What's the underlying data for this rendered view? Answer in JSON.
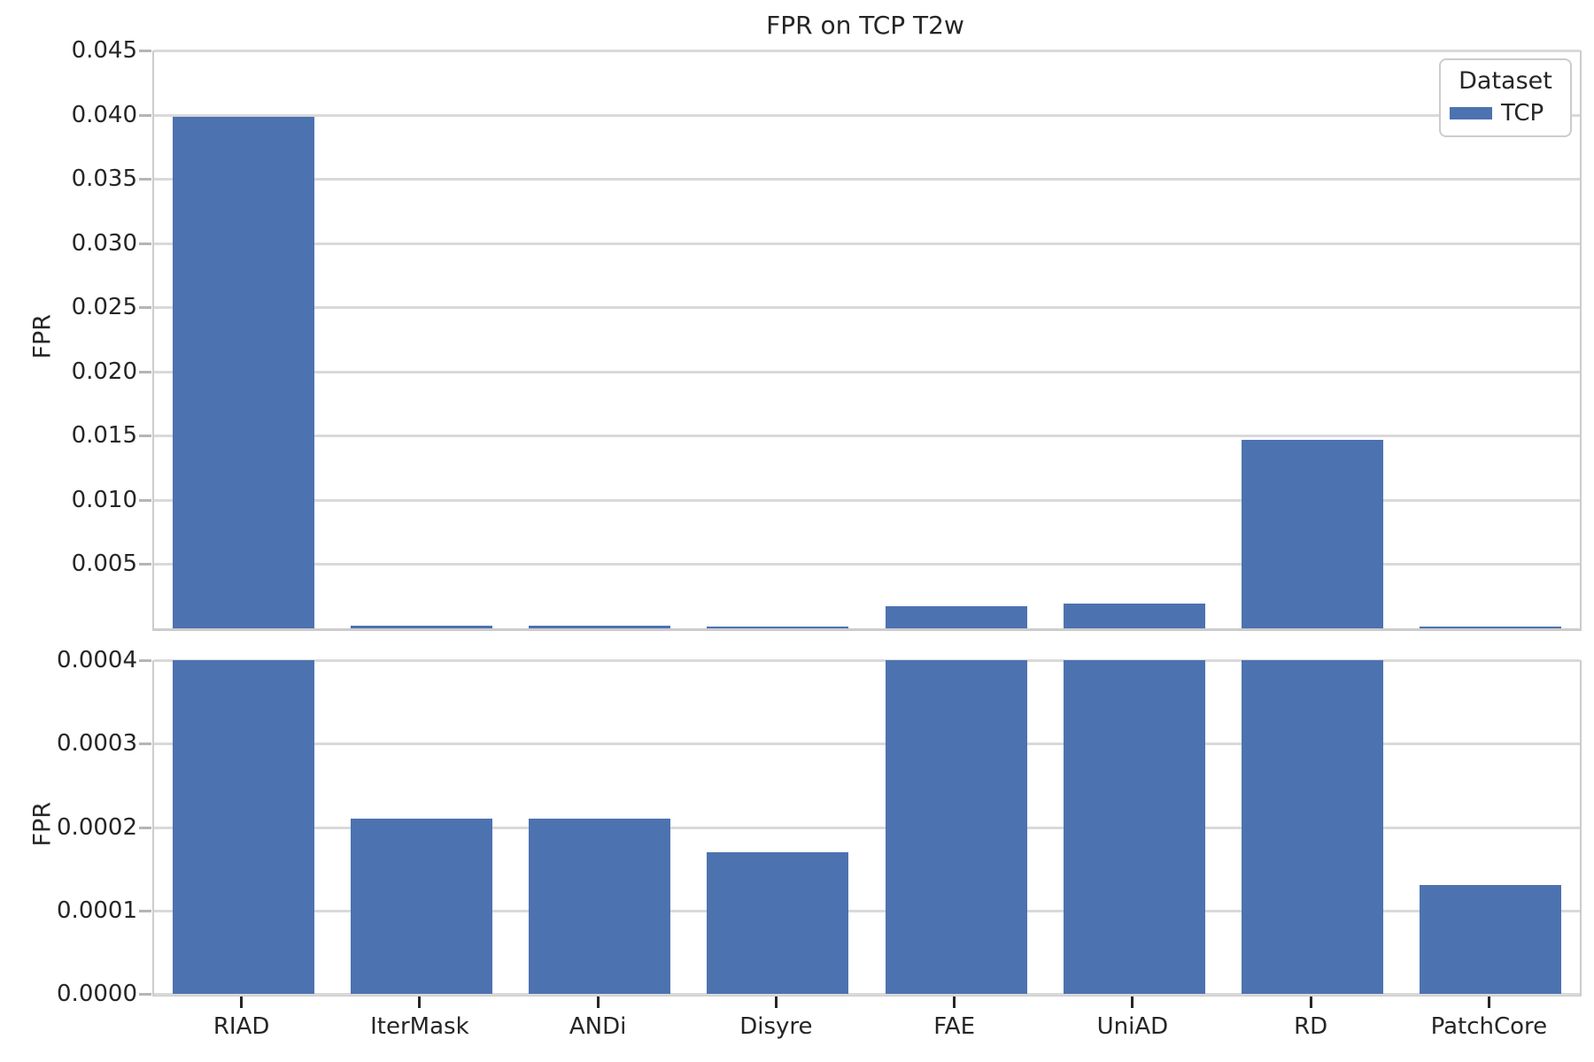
{
  "chart_data": {
    "type": "bar",
    "title": "FPR on TCP T2w",
    "categories": [
      "RIAD",
      "IterMask",
      "ANDi",
      "Disyre",
      "FAE",
      "UniAD",
      "RD",
      "PatchCore"
    ],
    "series": [
      {
        "name": "TCP",
        "values": [
          0.0398,
          0.00021,
          0.00021,
          0.00017,
          0.0017,
          0.0019,
          0.0147,
          0.00013
        ]
      }
    ],
    "legend": {
      "title": "Dataset",
      "entries": [
        {
          "label": "TCP",
          "color": "#4C72B0"
        }
      ],
      "position": "upper right"
    },
    "grid": true,
    "panels": [
      {
        "ylabel": "FPR",
        "ylim": [
          0,
          0.045
        ],
        "ytick_labels": [
          "0.045",
          "0.040",
          "0.035",
          "0.030",
          "0.025",
          "0.020",
          "0.015",
          "0.010",
          "0.005"
        ]
      },
      {
        "ylabel": "FPR",
        "ylim": [
          0,
          0.0004
        ],
        "ytick_labels": [
          "0.0004",
          "0.0003",
          "0.0002",
          "0.0001",
          "0.0000"
        ],
        "note": "bars above 0.0004 are clipped at panel top"
      }
    ]
  },
  "colors": {
    "bar": "#4C72B0",
    "grid": "#D9D9D9",
    "spine": "#CCCCCC",
    "text": "#262626",
    "background": "#FFFFFF"
  }
}
